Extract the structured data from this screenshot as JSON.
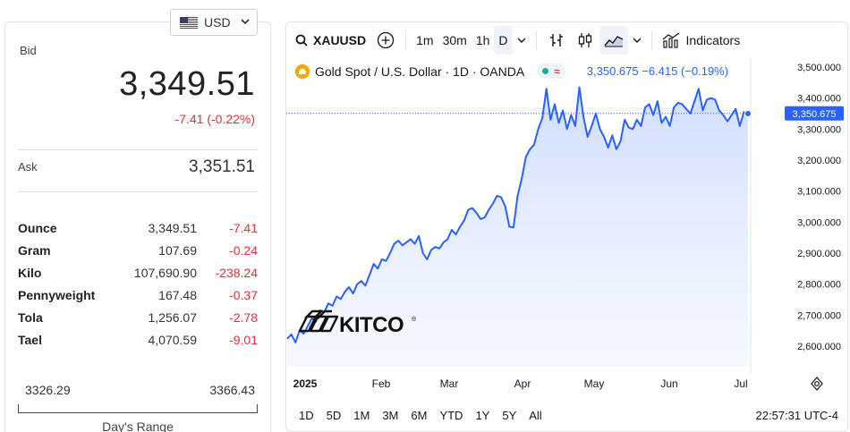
{
  "currency": {
    "label": "USD"
  },
  "bid": {
    "label": "Bid",
    "value": "3,349.51",
    "change": "-7.41 (-0.22%)"
  },
  "ask": {
    "label": "Ask",
    "value": "3,351.51"
  },
  "units": [
    {
      "name": "Ounce",
      "price": "3,349.51",
      "change": "-7.41"
    },
    {
      "name": "Gram",
      "price": "107.69",
      "change": "-0.24"
    },
    {
      "name": "Kilo",
      "price": "107,690.90",
      "change": "-238.24"
    },
    {
      "name": "Pennyweight",
      "price": "167.48",
      "change": "-0.37"
    },
    {
      "name": "Tola",
      "price": "1,256.07",
      "change": "-2.78"
    },
    {
      "name": "Tael",
      "price": "4,070.59",
      "change": "-9.01"
    }
  ],
  "day_range": {
    "low": "3326.29",
    "high": "3366.43",
    "label": "Day's Range"
  },
  "chart_toolbar": {
    "symbol": "XAUUSD",
    "intervals": [
      "1m",
      "30m",
      "1h",
      "D"
    ],
    "active_interval": "D",
    "indicators_label": "Indicators"
  },
  "chart_legend": {
    "title": "Gold Spot / U.S. Dollar · 1D · OANDA",
    "quote": "3,350.675  −6.415 (−0.19%)"
  },
  "watermark": "KITCO",
  "last_price_label": "3,350.675",
  "bottom_bar": {
    "ranges": [
      "1D",
      "5D",
      "1M",
      "3M",
      "6M",
      "YTD",
      "1Y",
      "5Y",
      "All"
    ],
    "time": "22:57:31 UTC-4"
  },
  "colors": {
    "line": "#2962ff",
    "negative": "#e0303d",
    "fill_top": "#dbe5ff"
  },
  "chart_data": {
    "type": "area",
    "series": [
      {
        "values": [
          2624,
          2638,
          2612,
          2650,
          2640,
          2665,
          2690,
          2680,
          2715,
          2710,
          2738,
          2730,
          2760,
          2752,
          2775,
          2790,
          2770,
          2800,
          2810,
          2795,
          2830,
          2865,
          2850,
          2880,
          2875,
          2900,
          2930,
          2940,
          2925,
          2935,
          2945,
          2930,
          2955,
          2900,
          2880,
          2910,
          2920,
          2915,
          2935,
          2945,
          2975,
          2960,
          2985,
          3005,
          3040,
          3045,
          3030,
          3010,
          3015,
          3040,
          3060,
          3085,
          3080,
          3050,
          2985,
          2983,
          3085,
          3140,
          3210,
          3235,
          3250,
          3300,
          3335,
          3430,
          3330,
          3380,
          3320,
          3360,
          3300,
          3345,
          3310,
          3435,
          3340,
          3275,
          3310,
          3350,
          3300,
          3275,
          3240,
          3280,
          3235,
          3260,
          3330,
          3305,
          3300,
          3330,
          3310,
          3370,
          3380,
          3345,
          3390,
          3320,
          3340,
          3310,
          3370,
          3385,
          3380,
          3365,
          3350,
          3390,
          3430,
          3360,
          3395,
          3400,
          3395,
          3360,
          3345,
          3325,
          3345,
          3365,
          3310,
          3355,
          3350
        ],
        "x_start": "2025-01-01",
        "x_end": "2025-07-03"
      }
    ],
    "x_ticks": [
      "2025",
      "Feb",
      "Mar",
      "Apr",
      "May",
      "Jun",
      "Jul"
    ],
    "y_ticks": [
      "2,600.000",
      "2,700.000",
      "2,800.000",
      "2,900.000",
      "3,000.000",
      "3,100.000",
      "3,200.000",
      "3,300.000",
      "3,400.000",
      "3,500.000"
    ],
    "ylim": [
      2540,
      3600
    ]
  }
}
